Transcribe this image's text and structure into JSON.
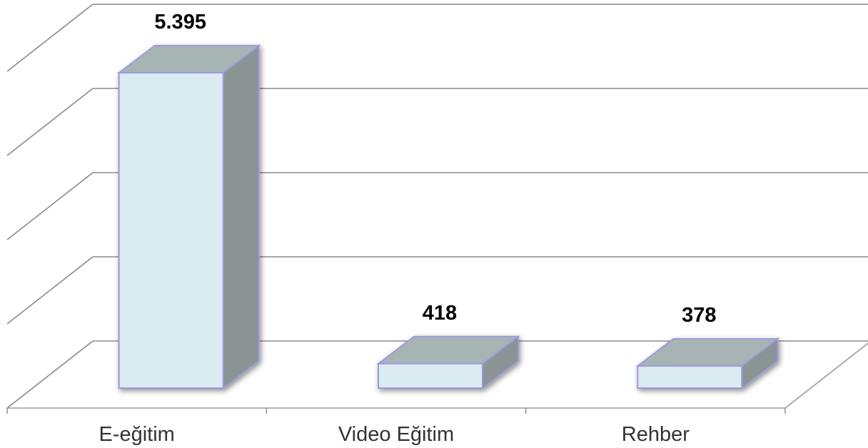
{
  "chart_data": {
    "type": "bar",
    "style": "3d-column",
    "categories": [
      "E-eğitim",
      "Video Eğitim",
      "Rehber"
    ],
    "values": [
      5395,
      418,
      378
    ],
    "data_labels": [
      "5.395",
      "418",
      "378"
    ],
    "title": "",
    "xlabel": "",
    "ylabel": "",
    "grid": true,
    "legend": "none",
    "colors": {
      "bar_front": "#daebf1",
      "bar_top": "#a7b4b4",
      "bar_side": "#8a9494",
      "bar_outline": "#9d9ade",
      "grid": "#8a8a8a"
    }
  }
}
